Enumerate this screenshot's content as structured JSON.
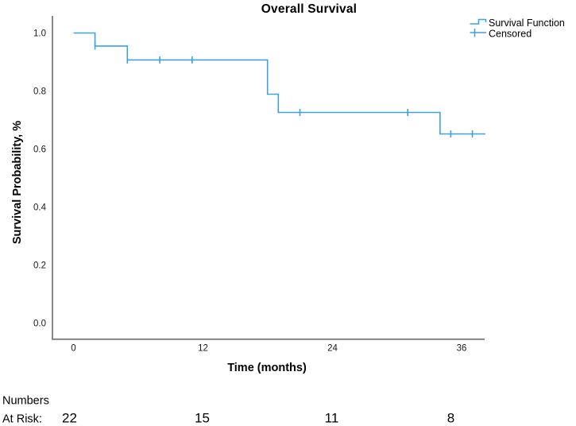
{
  "figure": {
    "title": "Overall Survival"
  },
  "colors": {
    "series": "#3BA4DC",
    "axis": "#7b7b7b",
    "text": "#000000"
  },
  "legend": {
    "position": "top-right",
    "items": [
      {
        "label": "Survival Function",
        "marker": "step-line"
      },
      {
        "label": "Censored",
        "marker": "plus"
      }
    ]
  },
  "axes": {
    "x": {
      "label": "Time (months)",
      "ticks": [
        "0",
        "12",
        "24",
        "36"
      ]
    },
    "y": {
      "label": "Survival Probability, %",
      "ticks": [
        "0.0",
        "0.2",
        "0.4",
        "0.6",
        "0.8",
        "1.0"
      ]
    }
  },
  "at_risk": {
    "line1": "Numbers",
    "line2": "At Risk:",
    "counts": [
      "22",
      "15",
      "11",
      "8"
    ],
    "times": [
      0,
      12,
      24,
      36
    ]
  },
  "chart_data": {
    "type": "line",
    "subtype": "kaplan-meier-step",
    "title": "Overall Survival",
    "xlabel": "Time (months)",
    "ylabel": "Survival Probability, %",
    "xticks": [
      0,
      12,
      24,
      36
    ],
    "yticks": [
      0.0,
      0.2,
      0.4,
      0.6,
      0.8,
      1.0
    ],
    "xlim": [
      -2,
      38.5
    ],
    "ylim": [
      0.0,
      1.07
    ],
    "grid": false,
    "legend_position": "top-right",
    "series": [
      {
        "name": "Survival Function",
        "color": "#3BA4DC",
        "steps": [
          {
            "t": 0,
            "s": 1.0
          },
          {
            "t": 2,
            "s": 0.955
          },
          {
            "t": 5,
            "s": 0.907
          },
          {
            "t": 18,
            "s": 0.789
          },
          {
            "t": 19,
            "s": 0.726
          },
          {
            "t": 34,
            "s": 0.652
          }
        ],
        "t_end": 38.2
      },
      {
        "name": "Censored",
        "marker": "plus",
        "color": "#3BA4DC",
        "points": [
          {
            "t": 2,
            "s": 0.955
          },
          {
            "t": 5,
            "s": 0.907
          },
          {
            "t": 8,
            "s": 0.907
          },
          {
            "t": 11,
            "s": 0.907
          },
          {
            "t": 21,
            "s": 0.726
          },
          {
            "t": 31,
            "s": 0.726
          },
          {
            "t": 35,
            "s": 0.652
          },
          {
            "t": 37,
            "s": 0.652
          }
        ]
      }
    ],
    "at_risk": {
      "times": [
        0,
        12,
        24,
        36
      ],
      "counts": [
        22,
        15,
        11,
        8
      ]
    }
  }
}
